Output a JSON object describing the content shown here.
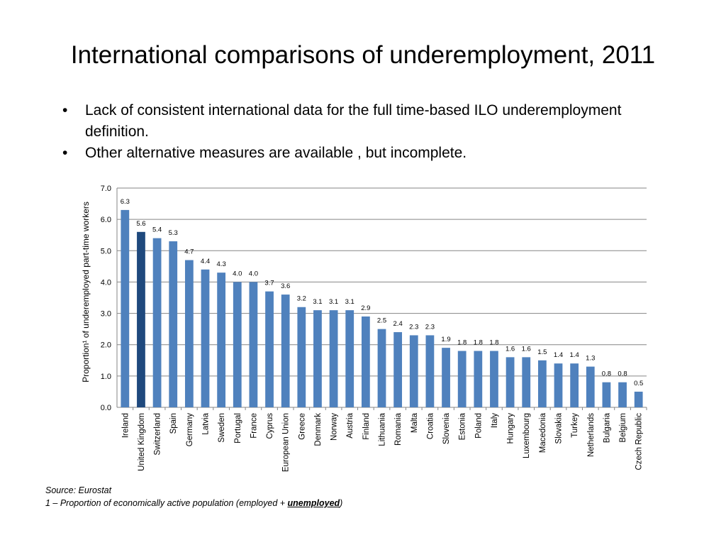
{
  "slide": {
    "title": "International comparisons of underemployment, 2011",
    "bullets": [
      "Lack of consistent international data for the full time-based ILO underemployment definition.",
      "Other alternative measures are available , but incomplete."
    ],
    "bullet_glyph": "•",
    "source_line": "Source: Eurostat",
    "footnote_prefix": "1 – Proportion of economically active population (employed + ",
    "footnote_emphasis": "unemployed",
    "footnote_suffix": ")"
  },
  "chart_data": {
    "type": "bar",
    "title": "",
    "xlabel": "",
    "ylabel": "Proportion¹ of underemployed part-time workers",
    "ylim": [
      0,
      7
    ],
    "yticks": [
      0,
      1,
      2,
      3,
      4,
      5,
      6,
      7
    ],
    "ytick_labels": [
      "0.0",
      "1.0",
      "2.0",
      "3.0",
      "4.0",
      "5.0",
      "6.0",
      "7.0"
    ],
    "grid": true,
    "legend": "none",
    "bar_color": "#4F81BD",
    "highlight_color": "#1F497D",
    "highlight_category": "United Kingdom",
    "categories": [
      "Ireland",
      "United Kingdom",
      "Switzerland",
      "Spain",
      "Germany",
      "Latvia",
      "Sweden",
      "Portugal",
      "France",
      "Cyprus",
      "European Union",
      "Greece",
      "Denmark",
      "Norway",
      "Austria",
      "Finland",
      "Lithuania",
      "Romania",
      "Malta",
      "Croatia",
      "Slovenia",
      "Estonia",
      "Poland",
      "Italy",
      "Hungary",
      "Luxembourg",
      "Macedonia",
      "Slovakia",
      "Turkey",
      "Netherlands",
      "Bulgaria",
      "Belgium",
      "Czech Republic"
    ],
    "values": [
      6.3,
      5.6,
      5.4,
      5.3,
      4.7,
      4.4,
      4.3,
      4.0,
      4.0,
      3.7,
      3.6,
      3.2,
      3.1,
      3.1,
      3.1,
      2.9,
      2.5,
      2.4,
      2.3,
      2.3,
      1.9,
      1.8,
      1.8,
      1.8,
      1.6,
      1.6,
      1.5,
      1.4,
      1.4,
      1.3,
      0.8,
      0.8,
      0.5
    ],
    "data_labels": [
      "6.3",
      "5.6",
      "5.4",
      "5.3",
      "4.7",
      "4.4",
      "4.3",
      "4.0",
      "4.0",
      "3.7",
      "3.6",
      "3.2",
      "3.1",
      "3.1",
      "3.1",
      "2.9",
      "2.5",
      "2.4",
      "2.3",
      "2.3",
      "1.9",
      "1.8",
      "1.8",
      "1.8",
      "1.6",
      "1.6",
      "1.5",
      "1.4",
      "1.4",
      "1.3",
      "0.8",
      "0.8",
      "0.5"
    ]
  }
}
